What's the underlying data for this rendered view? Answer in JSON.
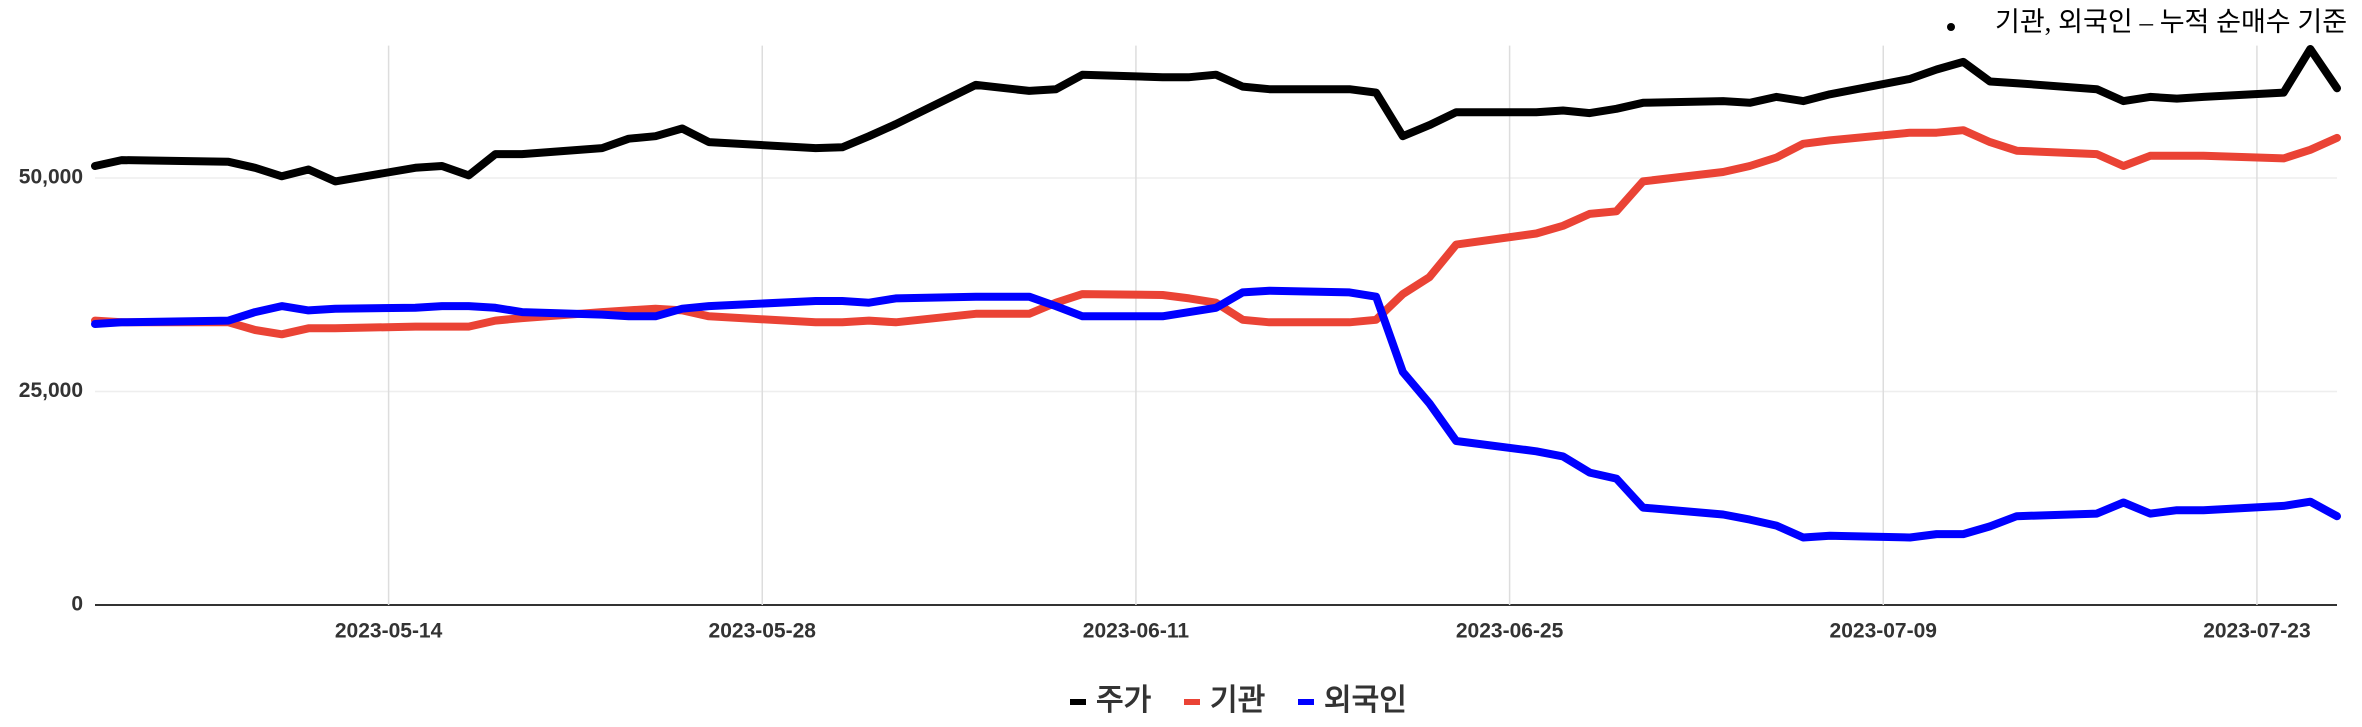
{
  "chart_data": {
    "type": "line",
    "annotation": "기관, 외국인 – 누적 순매수 기준",
    "x": [
      "2023-05-03",
      "2023-05-04",
      "2023-05-08",
      "2023-05-09",
      "2023-05-10",
      "2023-05-11",
      "2023-05-12",
      "2023-05-15",
      "2023-05-16",
      "2023-05-17",
      "2023-05-18",
      "2023-05-19",
      "2023-05-22",
      "2023-05-23",
      "2023-05-24",
      "2023-05-25",
      "2023-05-26",
      "2023-05-30",
      "2023-05-31",
      "2023-06-01",
      "2023-06-02",
      "2023-06-05",
      "2023-06-07",
      "2023-06-08",
      "2023-06-09",
      "2023-06-12",
      "2023-06-13",
      "2023-06-14",
      "2023-06-15",
      "2023-06-16",
      "2023-06-19",
      "2023-06-20",
      "2023-06-21",
      "2023-06-22",
      "2023-06-23",
      "2023-06-26",
      "2023-06-27",
      "2023-06-28",
      "2023-06-29",
      "2023-06-30",
      "2023-07-03",
      "2023-07-04",
      "2023-07-05",
      "2023-07-06",
      "2023-07-07",
      "2023-07-10",
      "2023-07-11",
      "2023-07-12",
      "2023-07-13",
      "2023-07-14",
      "2023-07-17",
      "2023-07-18",
      "2023-07-19",
      "2023-07-20",
      "2023-07-21",
      "2023-07-24",
      "2023-07-25",
      "2023-07-26"
    ],
    "series": [
      {
        "name": "주가",
        "color": "#000000",
        "values": [
          51400,
          52100,
          51900,
          51200,
          50200,
          51000,
          49600,
          51200,
          51400,
          50300,
          52800,
          52800,
          53500,
          54600,
          54900,
          55800,
          54200,
          53500,
          53600,
          54900,
          56300,
          60900,
          60200,
          60400,
          62100,
          61800,
          61800,
          62100,
          60700,
          60400,
          60400,
          60000,
          54900,
          56200,
          57700,
          57700,
          57900,
          57600,
          58100,
          58800,
          59000,
          58800,
          59500,
          59000,
          59800,
          61600,
          62700,
          63600,
          61300,
          61100,
          60400,
          59000,
          59500,
          59300,
          59500,
          60000,
          65100,
          60500
        ]
      },
      {
        "name": "기관",
        "color": "#ea4335",
        "values": [
          33300,
          33100,
          33100,
          32200,
          31700,
          32400,
          32400,
          32600,
          32600,
          32600,
          33300,
          33600,
          34300,
          34500,
          34700,
          34500,
          33800,
          33100,
          33100,
          33300,
          33100,
          34100,
          34100,
          35400,
          36400,
          36300,
          35900,
          35400,
          33400,
          33100,
          33100,
          33400,
          36400,
          38400,
          42200,
          43500,
          44400,
          45800,
          46100,
          49600,
          50700,
          51400,
          52400,
          54000,
          54400,
          55300,
          55300,
          55600,
          54200,
          53200,
          52800,
          51400,
          52600,
          52600,
          52600,
          52300,
          53300,
          54700
        ]
      },
      {
        "name": "외국인",
        "color": "#0000ff",
        "values": [
          32900,
          33100,
          33300,
          34300,
          35000,
          34500,
          34700,
          34800,
          35000,
          35000,
          34800,
          34300,
          34000,
          33800,
          33800,
          34700,
          35000,
          35600,
          35600,
          35400,
          35900,
          36100,
          36100,
          35000,
          33800,
          33800,
          34300,
          34800,
          36600,
          36800,
          36600,
          36100,
          27300,
          23600,
          19200,
          18000,
          17400,
          15500,
          14800,
          11400,
          10600,
          10000,
          9300,
          7900,
          8100,
          7900,
          8300,
          8300,
          9200,
          10400,
          10700,
          12000,
          10700,
          11100,
          11100,
          11600,
          12100,
          10400
        ]
      }
    ],
    "xlim": [
      "2023-05-03",
      "2023-07-26"
    ],
    "xticks": [
      "2023-05-14",
      "2023-05-28",
      "2023-06-11",
      "2023-06-25",
      "2023-07-09",
      "2023-07-23"
    ],
    "ylim": [
      0,
      65500
    ],
    "yticks": [
      0,
      {
        "value": 25000,
        "label": "25,000"
      },
      {
        "value": 50000,
        "label": "50,000"
      }
    ],
    "grid": true
  }
}
